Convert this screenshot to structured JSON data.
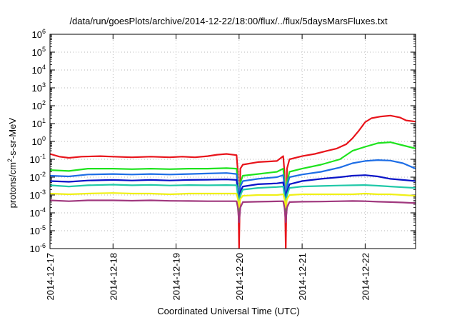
{
  "chart_data": {
    "type": "line",
    "title": "/data/run/goesPlots/archive/2014-12-22/18:00/flux/../flux/5daysMarsFluxes.txt",
    "xlabel": "Coordinated Universal Time (UTC)",
    "ylabel": {
      "prefix": "protons/cm",
      "sup": "2",
      "suffix": "-s-sr-MeV"
    },
    "xlim": [
      0,
      5.8
    ],
    "x_ticks": [
      {
        "x": 0,
        "label": "2014-12-17"
      },
      {
        "x": 1,
        "label": "2014-12-18"
      },
      {
        "x": 2,
        "label": "2014-12-19"
      },
      {
        "x": 3,
        "label": "2014-12-20"
      },
      {
        "x": 4,
        "label": "2014-12-21"
      },
      {
        "x": 5,
        "label": "2014-12-22"
      }
    ],
    "y_scale": "log",
    "ylim": [
      1e-06,
      1000000.0
    ],
    "y_ticks": [
      {
        "exp": "6"
      },
      {
        "exp": "5"
      },
      {
        "exp": "4"
      },
      {
        "exp": "3"
      },
      {
        "exp": "2"
      },
      {
        "exp": "1"
      },
      {
        "exp": "0"
      },
      {
        "exp": "-1"
      },
      {
        "exp": "-2"
      },
      {
        "exp": "-3"
      },
      {
        "exp": "-4"
      },
      {
        "exp": "-5"
      },
      {
        "exp": "-6"
      }
    ],
    "y_tick_base": "10",
    "grid": true,
    "series": [
      {
        "color": "#e8141b",
        "points": [
          [
            0,
            0.2
          ],
          [
            0.15,
            0.14
          ],
          [
            0.3,
            0.12
          ],
          [
            0.5,
            0.14
          ],
          [
            0.8,
            0.15
          ],
          [
            1.0,
            0.14
          ],
          [
            1.3,
            0.13
          ],
          [
            1.6,
            0.14
          ],
          [
            1.9,
            0.13
          ],
          [
            2.1,
            0.14
          ],
          [
            2.3,
            0.13
          ],
          [
            2.5,
            0.15
          ],
          [
            2.65,
            0.18
          ],
          [
            2.8,
            0.2
          ],
          [
            2.96,
            0.17
          ],
          [
            2.98,
            0.02
          ],
          [
            3.0,
            1e-06
          ],
          [
            3.02,
            0.03
          ],
          [
            3.06,
            0.05
          ],
          [
            3.3,
            0.07
          ],
          [
            3.6,
            0.08
          ],
          [
            3.7,
            0.15
          ],
          [
            3.72,
            0.02
          ],
          [
            3.74,
            1e-06
          ],
          [
            3.76,
            0.03
          ],
          [
            3.8,
            0.1
          ],
          [
            4.0,
            0.15
          ],
          [
            4.2,
            0.2
          ],
          [
            4.4,
            0.3
          ],
          [
            4.55,
            0.4
          ],
          [
            4.7,
            0.7
          ],
          [
            4.8,
            1.5
          ],
          [
            4.9,
            4
          ],
          [
            5.0,
            12
          ],
          [
            5.1,
            20
          ],
          [
            5.25,
            25
          ],
          [
            5.4,
            28
          ],
          [
            5.55,
            22
          ],
          [
            5.65,
            15
          ],
          [
            5.8,
            13
          ]
        ]
      },
      {
        "color": "#1ee31e",
        "points": [
          [
            0,
            0.025
          ],
          [
            0.3,
            0.022
          ],
          [
            0.6,
            0.03
          ],
          [
            1.0,
            0.03
          ],
          [
            1.3,
            0.028
          ],
          [
            1.6,
            0.03
          ],
          [
            1.9,
            0.028
          ],
          [
            2.2,
            0.03
          ],
          [
            2.5,
            0.03
          ],
          [
            2.8,
            0.032
          ],
          [
            2.96,
            0.03
          ],
          [
            2.98,
            0.005
          ],
          [
            3.0,
            0.0001
          ],
          [
            3.02,
            0.005
          ],
          [
            3.06,
            0.012
          ],
          [
            3.3,
            0.015
          ],
          [
            3.6,
            0.02
          ],
          [
            3.7,
            0.03
          ],
          [
            3.72,
            0.005
          ],
          [
            3.74,
            0.0001
          ],
          [
            3.76,
            0.005
          ],
          [
            3.8,
            0.02
          ],
          [
            4.0,
            0.03
          ],
          [
            4.3,
            0.05
          ],
          [
            4.6,
            0.1
          ],
          [
            4.8,
            0.3
          ],
          [
            5.0,
            0.5
          ],
          [
            5.2,
            0.8
          ],
          [
            5.4,
            0.9
          ],
          [
            5.6,
            0.6
          ],
          [
            5.8,
            0.4
          ]
        ]
      },
      {
        "color": "#1e6ee6",
        "points": [
          [
            0,
            0.012
          ],
          [
            0.3,
            0.011
          ],
          [
            0.6,
            0.014
          ],
          [
            1.0,
            0.015
          ],
          [
            1.3,
            0.014
          ],
          [
            1.6,
            0.015
          ],
          [
            1.9,
            0.014
          ],
          [
            2.2,
            0.015
          ],
          [
            2.5,
            0.016
          ],
          [
            2.8,
            0.017
          ],
          [
            2.96,
            0.015
          ],
          [
            2.98,
            0.003
          ],
          [
            3.0,
            0.0005
          ],
          [
            3.02,
            0.003
          ],
          [
            3.06,
            0.006
          ],
          [
            3.3,
            0.008
          ],
          [
            3.6,
            0.01
          ],
          [
            3.7,
            0.013
          ],
          [
            3.72,
            0.003
          ],
          [
            3.74,
            0.0005
          ],
          [
            3.76,
            0.003
          ],
          [
            3.8,
            0.01
          ],
          [
            4.0,
            0.014
          ],
          [
            4.3,
            0.02
          ],
          [
            4.6,
            0.035
          ],
          [
            4.8,
            0.06
          ],
          [
            5.0,
            0.08
          ],
          [
            5.2,
            0.09
          ],
          [
            5.4,
            0.085
          ],
          [
            5.6,
            0.06
          ],
          [
            5.8,
            0.03
          ]
        ]
      },
      {
        "color": "#0a14c8",
        "points": [
          [
            0,
            0.006
          ],
          [
            0.3,
            0.0055
          ],
          [
            0.6,
            0.0065
          ],
          [
            1.0,
            0.007
          ],
          [
            1.3,
            0.0065
          ],
          [
            1.6,
            0.007
          ],
          [
            1.9,
            0.0065
          ],
          [
            2.2,
            0.007
          ],
          [
            2.5,
            0.0072
          ],
          [
            2.8,
            0.0075
          ],
          [
            2.96,
            0.007
          ],
          [
            2.98,
            0.0015
          ],
          [
            3.0,
            0.0004
          ],
          [
            3.02,
            0.0015
          ],
          [
            3.06,
            0.003
          ],
          [
            3.3,
            0.004
          ],
          [
            3.6,
            0.0045
          ],
          [
            3.7,
            0.005
          ],
          [
            3.72,
            0.0015
          ],
          [
            3.74,
            0.0004
          ],
          [
            3.76,
            0.0015
          ],
          [
            3.8,
            0.004
          ],
          [
            4.0,
            0.006
          ],
          [
            4.3,
            0.008
          ],
          [
            4.6,
            0.01
          ],
          [
            4.8,
            0.012
          ],
          [
            5.0,
            0.013
          ],
          [
            5.2,
            0.011
          ],
          [
            5.4,
            0.008
          ],
          [
            5.6,
            0.007
          ],
          [
            5.8,
            0.006
          ]
        ]
      },
      {
        "color": "#20c8a8",
        "points": [
          [
            0,
            0.0035
          ],
          [
            0.3,
            0.003
          ],
          [
            0.6,
            0.0035
          ],
          [
            1.0,
            0.0038
          ],
          [
            1.3,
            0.0035
          ],
          [
            1.6,
            0.0037
          ],
          [
            1.9,
            0.0034
          ],
          [
            2.2,
            0.0036
          ],
          [
            2.5,
            0.0035
          ],
          [
            2.8,
            0.0036
          ],
          [
            2.96,
            0.0035
          ],
          [
            2.98,
            0.001
          ],
          [
            3.0,
            0.0003
          ],
          [
            3.02,
            0.001
          ],
          [
            3.06,
            0.002
          ],
          [
            3.3,
            0.0025
          ],
          [
            3.6,
            0.0028
          ],
          [
            3.7,
            0.003
          ],
          [
            3.72,
            0.001
          ],
          [
            3.74,
            0.0003
          ],
          [
            3.76,
            0.001
          ],
          [
            3.8,
            0.0025
          ],
          [
            4.0,
            0.003
          ],
          [
            4.3,
            0.0032
          ],
          [
            4.6,
            0.0034
          ],
          [
            4.8,
            0.0035
          ],
          [
            5.0,
            0.0036
          ],
          [
            5.2,
            0.0033
          ],
          [
            5.4,
            0.003
          ],
          [
            5.6,
            0.0027
          ],
          [
            5.8,
            0.0025
          ]
        ]
      },
      {
        "color": "#f0f018",
        "points": [
          [
            0,
            0.0012
          ],
          [
            0.3,
            0.0011
          ],
          [
            0.6,
            0.0012
          ],
          [
            1.0,
            0.0013
          ],
          [
            1.3,
            0.0012
          ],
          [
            1.6,
            0.0012
          ],
          [
            1.9,
            0.0011
          ],
          [
            2.2,
            0.0012
          ],
          [
            2.5,
            0.0012
          ],
          [
            2.8,
            0.0012
          ],
          [
            2.96,
            0.0012
          ],
          [
            2.98,
            0.0006
          ],
          [
            3.0,
            0.0002
          ],
          [
            3.02,
            0.0006
          ],
          [
            3.06,
            0.0009
          ],
          [
            3.3,
            0.001
          ],
          [
            3.6,
            0.001
          ],
          [
            3.7,
            0.0011
          ],
          [
            3.72,
            0.0006
          ],
          [
            3.74,
            0.0002
          ],
          [
            3.76,
            0.0006
          ],
          [
            3.8,
            0.001
          ],
          [
            4.0,
            0.0011
          ],
          [
            4.3,
            0.0011
          ],
          [
            4.6,
            0.0011
          ],
          [
            4.8,
            0.0011
          ],
          [
            5.0,
            0.0012
          ],
          [
            5.2,
            0.0011
          ],
          [
            5.4,
            0.0011
          ],
          [
            5.6,
            0.001
          ],
          [
            5.8,
            0.0009
          ]
        ]
      },
      {
        "color": "#a0387e",
        "points": [
          [
            0,
            0.0005
          ],
          [
            0.3,
            0.00045
          ],
          [
            0.6,
            0.0005
          ],
          [
            1.0,
            0.0005
          ],
          [
            1.3,
            0.00048
          ],
          [
            1.6,
            0.0005
          ],
          [
            1.9,
            0.00047
          ],
          [
            2.2,
            0.00046
          ],
          [
            2.5,
            0.00045
          ],
          [
            2.8,
            0.00045
          ],
          [
            2.96,
            0.00045
          ],
          [
            2.98,
            0.0002
          ],
          [
            3.0,
            3e-05
          ],
          [
            3.02,
            0.0002
          ],
          [
            3.06,
            0.0004
          ],
          [
            3.3,
            0.00042
          ],
          [
            3.6,
            0.00044
          ],
          [
            3.7,
            0.00045
          ],
          [
            3.72,
            0.0002
          ],
          [
            3.74,
            3e-05
          ],
          [
            3.76,
            0.0002
          ],
          [
            3.8,
            0.0004
          ],
          [
            4.0,
            0.00042
          ],
          [
            4.3,
            0.00043
          ],
          [
            4.6,
            0.00045
          ],
          [
            4.8,
            0.00046
          ],
          [
            5.0,
            0.00045
          ],
          [
            5.2,
            0.00042
          ],
          [
            5.4,
            0.0004
          ],
          [
            5.6,
            0.00038
          ],
          [
            5.8,
            0.00035
          ]
        ]
      }
    ]
  }
}
